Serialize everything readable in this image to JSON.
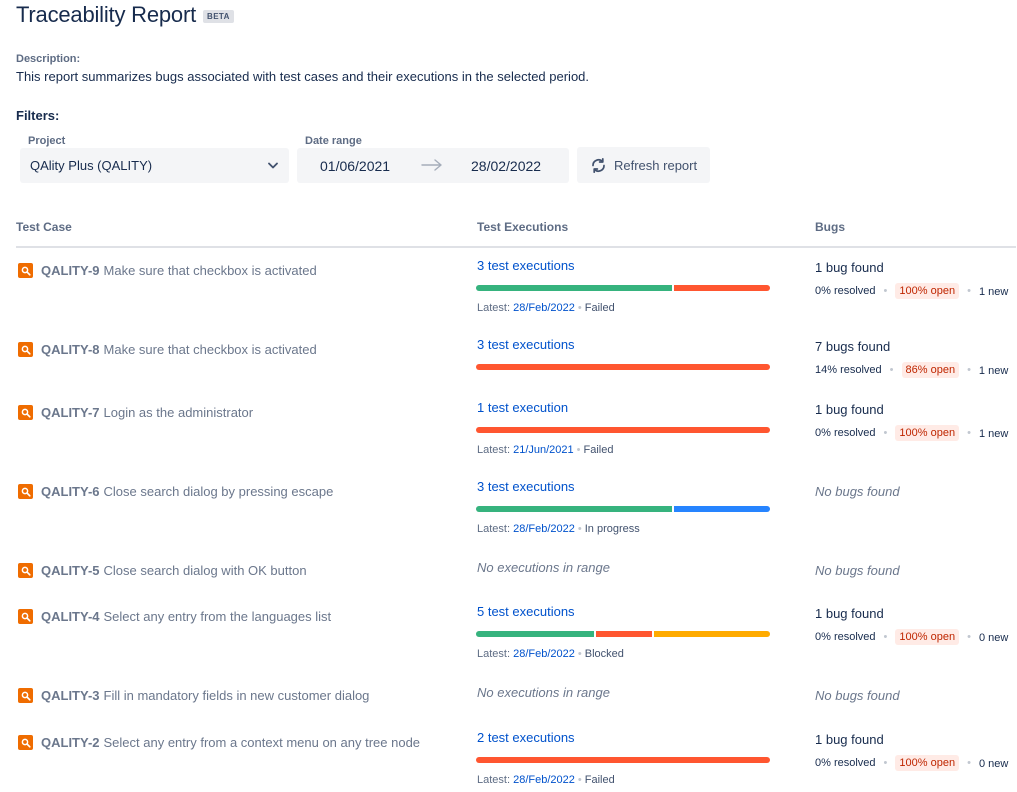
{
  "header": {
    "title": "Traceability Report",
    "badge": "BETA"
  },
  "description": {
    "label": "Description:",
    "text": "This report summarizes bugs associated with test cases and their executions in the selected period."
  },
  "filters": {
    "label": "Filters:",
    "project_label": "Project",
    "project_value": "QAlity Plus (QALITY)",
    "date_label": "Date range",
    "date_from": "01/06/2021",
    "date_to": "28/02/2022",
    "refresh_label": "Refresh report"
  },
  "table": {
    "headers": {
      "test_case": "Test Case",
      "executions": "Test Executions",
      "bugs": "Bugs"
    },
    "latest_prefix": "Latest:",
    "rows": [
      {
        "key": "QALITY-9",
        "name": "Make sure that checkbox is activated",
        "exec_label": "3 test executions",
        "segments": [
          {
            "share": 0.667,
            "status": "passed"
          },
          {
            "share": 0.333,
            "status": "failed"
          }
        ],
        "latest_date": "28/Feb/2022",
        "latest_status": "Failed",
        "bugs_found": "1 bug found",
        "resolved": "0% resolved",
        "open": "100% open",
        "new": "1 new"
      },
      {
        "key": "QALITY-8",
        "name": "Make sure that checkbox is activated",
        "exec_label": "3 test executions",
        "segments": [
          {
            "share": 1.0,
            "status": "failed"
          }
        ],
        "latest_date": "",
        "latest_status": "",
        "bugs_found": "7 bugs found",
        "resolved": "14% resolved",
        "open": "86% open",
        "new": "1 new"
      },
      {
        "key": "QALITY-7",
        "name": "Login as the administrator",
        "exec_label": "1 test execution",
        "segments": [
          {
            "share": 1.0,
            "status": "failed"
          }
        ],
        "latest_date": "21/Jun/2021",
        "latest_status": "Failed",
        "bugs_found": "1 bug found",
        "resolved": "0% resolved",
        "open": "100% open",
        "new": "1 new"
      },
      {
        "key": "QALITY-6",
        "name": "Close search dialog by pressing escape",
        "exec_label": "3 test executions",
        "segments": [
          {
            "share": 0.667,
            "status": "passed"
          },
          {
            "share": 0.333,
            "status": "in_progress"
          }
        ],
        "latest_date": "28/Feb/2022",
        "latest_status": "In progress",
        "bugs_found": "",
        "no_bugs": "No bugs found"
      },
      {
        "key": "QALITY-5",
        "name": "Close search dialog with OK button",
        "no_exec": "No executions in range",
        "bugs_found": "",
        "no_bugs": "No bugs found"
      },
      {
        "key": "QALITY-4",
        "name": "Select any entry from the languages list",
        "exec_label": "5 test executions",
        "segments": [
          {
            "share": 0.4,
            "status": "passed"
          },
          {
            "share": 0.2,
            "status": "failed"
          },
          {
            "share": 0.4,
            "status": "blocked"
          }
        ],
        "latest_date": "28/Feb/2022",
        "latest_status": "Blocked",
        "bugs_found": "1 bug found",
        "resolved": "0% resolved",
        "open": "100% open",
        "new": "0 new"
      },
      {
        "key": "QALITY-3",
        "name": "Fill in mandatory fields in new customer dialog",
        "no_exec": "No executions in range",
        "bugs_found": "",
        "no_bugs": "No bugs found"
      },
      {
        "key": "QALITY-2",
        "name": "Select any entry from a context menu on any tree node",
        "exec_label": "2 test executions",
        "segments": [
          {
            "share": 1.0,
            "status": "failed"
          }
        ],
        "latest_date": "28/Feb/2022",
        "latest_status": "Failed",
        "bugs_found": "1 bug found",
        "resolved": "0% resolved",
        "open": "100% open",
        "new": "0 new"
      }
    ]
  },
  "colors": {
    "passed": "#36b37e",
    "failed": "#ff5630",
    "in_progress": "#2684ff",
    "blocked": "#ffab00",
    "link": "#0052cc",
    "testcase_icon": "#ef6c00"
  },
  "icons": {
    "testcase": "magnifier-icon",
    "chevron": "chevron-down-icon",
    "arrow": "arrow-right-icon",
    "refresh": "refresh-icon"
  }
}
